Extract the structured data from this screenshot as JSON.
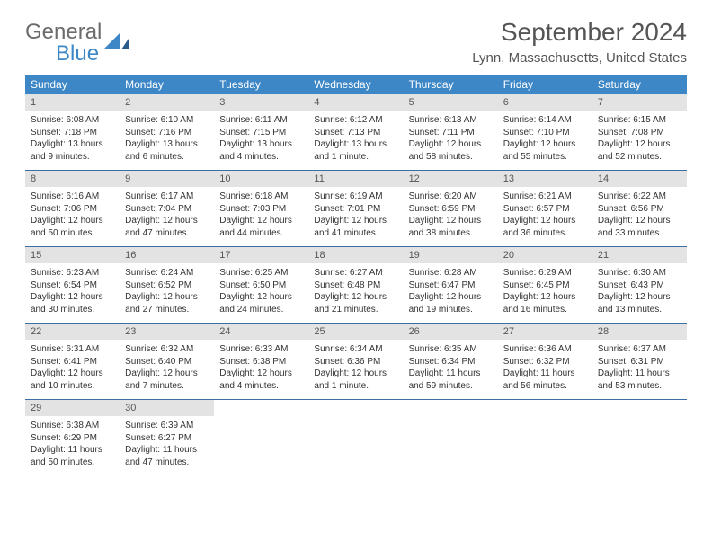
{
  "logo": {
    "text1": "General",
    "text2": "Blue"
  },
  "title": "September 2024",
  "location": "Lynn, Massachusetts, United States",
  "colors": {
    "header_bg": "#3d87c7",
    "daynum_bg": "#e3e3e3",
    "row_border": "#3d6ea3",
    "text_muted": "#555555"
  },
  "day_labels": [
    "Sunday",
    "Monday",
    "Tuesday",
    "Wednesday",
    "Thursday",
    "Friday",
    "Saturday"
  ],
  "weeks": [
    [
      {
        "n": "1",
        "sr": "Sunrise: 6:08 AM",
        "ss": "Sunset: 7:18 PM",
        "dl": "Daylight: 13 hours and 9 minutes."
      },
      {
        "n": "2",
        "sr": "Sunrise: 6:10 AM",
        "ss": "Sunset: 7:16 PM",
        "dl": "Daylight: 13 hours and 6 minutes."
      },
      {
        "n": "3",
        "sr": "Sunrise: 6:11 AM",
        "ss": "Sunset: 7:15 PM",
        "dl": "Daylight: 13 hours and 4 minutes."
      },
      {
        "n": "4",
        "sr": "Sunrise: 6:12 AM",
        "ss": "Sunset: 7:13 PM",
        "dl": "Daylight: 13 hours and 1 minute."
      },
      {
        "n": "5",
        "sr": "Sunrise: 6:13 AM",
        "ss": "Sunset: 7:11 PM",
        "dl": "Daylight: 12 hours and 58 minutes."
      },
      {
        "n": "6",
        "sr": "Sunrise: 6:14 AM",
        "ss": "Sunset: 7:10 PM",
        "dl": "Daylight: 12 hours and 55 minutes."
      },
      {
        "n": "7",
        "sr": "Sunrise: 6:15 AM",
        "ss": "Sunset: 7:08 PM",
        "dl": "Daylight: 12 hours and 52 minutes."
      }
    ],
    [
      {
        "n": "8",
        "sr": "Sunrise: 6:16 AM",
        "ss": "Sunset: 7:06 PM",
        "dl": "Daylight: 12 hours and 50 minutes."
      },
      {
        "n": "9",
        "sr": "Sunrise: 6:17 AM",
        "ss": "Sunset: 7:04 PM",
        "dl": "Daylight: 12 hours and 47 minutes."
      },
      {
        "n": "10",
        "sr": "Sunrise: 6:18 AM",
        "ss": "Sunset: 7:03 PM",
        "dl": "Daylight: 12 hours and 44 minutes."
      },
      {
        "n": "11",
        "sr": "Sunrise: 6:19 AM",
        "ss": "Sunset: 7:01 PM",
        "dl": "Daylight: 12 hours and 41 minutes."
      },
      {
        "n": "12",
        "sr": "Sunrise: 6:20 AM",
        "ss": "Sunset: 6:59 PM",
        "dl": "Daylight: 12 hours and 38 minutes."
      },
      {
        "n": "13",
        "sr": "Sunrise: 6:21 AM",
        "ss": "Sunset: 6:57 PM",
        "dl": "Daylight: 12 hours and 36 minutes."
      },
      {
        "n": "14",
        "sr": "Sunrise: 6:22 AM",
        "ss": "Sunset: 6:56 PM",
        "dl": "Daylight: 12 hours and 33 minutes."
      }
    ],
    [
      {
        "n": "15",
        "sr": "Sunrise: 6:23 AM",
        "ss": "Sunset: 6:54 PM",
        "dl": "Daylight: 12 hours and 30 minutes."
      },
      {
        "n": "16",
        "sr": "Sunrise: 6:24 AM",
        "ss": "Sunset: 6:52 PM",
        "dl": "Daylight: 12 hours and 27 minutes."
      },
      {
        "n": "17",
        "sr": "Sunrise: 6:25 AM",
        "ss": "Sunset: 6:50 PM",
        "dl": "Daylight: 12 hours and 24 minutes."
      },
      {
        "n": "18",
        "sr": "Sunrise: 6:27 AM",
        "ss": "Sunset: 6:48 PM",
        "dl": "Daylight: 12 hours and 21 minutes."
      },
      {
        "n": "19",
        "sr": "Sunrise: 6:28 AM",
        "ss": "Sunset: 6:47 PM",
        "dl": "Daylight: 12 hours and 19 minutes."
      },
      {
        "n": "20",
        "sr": "Sunrise: 6:29 AM",
        "ss": "Sunset: 6:45 PM",
        "dl": "Daylight: 12 hours and 16 minutes."
      },
      {
        "n": "21",
        "sr": "Sunrise: 6:30 AM",
        "ss": "Sunset: 6:43 PM",
        "dl": "Daylight: 12 hours and 13 minutes."
      }
    ],
    [
      {
        "n": "22",
        "sr": "Sunrise: 6:31 AM",
        "ss": "Sunset: 6:41 PM",
        "dl": "Daylight: 12 hours and 10 minutes."
      },
      {
        "n": "23",
        "sr": "Sunrise: 6:32 AM",
        "ss": "Sunset: 6:40 PM",
        "dl": "Daylight: 12 hours and 7 minutes."
      },
      {
        "n": "24",
        "sr": "Sunrise: 6:33 AM",
        "ss": "Sunset: 6:38 PM",
        "dl": "Daylight: 12 hours and 4 minutes."
      },
      {
        "n": "25",
        "sr": "Sunrise: 6:34 AM",
        "ss": "Sunset: 6:36 PM",
        "dl": "Daylight: 12 hours and 1 minute."
      },
      {
        "n": "26",
        "sr": "Sunrise: 6:35 AM",
        "ss": "Sunset: 6:34 PM",
        "dl": "Daylight: 11 hours and 59 minutes."
      },
      {
        "n": "27",
        "sr": "Sunrise: 6:36 AM",
        "ss": "Sunset: 6:32 PM",
        "dl": "Daylight: 11 hours and 56 minutes."
      },
      {
        "n": "28",
        "sr": "Sunrise: 6:37 AM",
        "ss": "Sunset: 6:31 PM",
        "dl": "Daylight: 11 hours and 53 minutes."
      }
    ],
    [
      {
        "n": "29",
        "sr": "Sunrise: 6:38 AM",
        "ss": "Sunset: 6:29 PM",
        "dl": "Daylight: 11 hours and 50 minutes."
      },
      {
        "n": "30",
        "sr": "Sunrise: 6:39 AM",
        "ss": "Sunset: 6:27 PM",
        "dl": "Daylight: 11 hours and 47 minutes."
      },
      null,
      null,
      null,
      null,
      null
    ]
  ]
}
